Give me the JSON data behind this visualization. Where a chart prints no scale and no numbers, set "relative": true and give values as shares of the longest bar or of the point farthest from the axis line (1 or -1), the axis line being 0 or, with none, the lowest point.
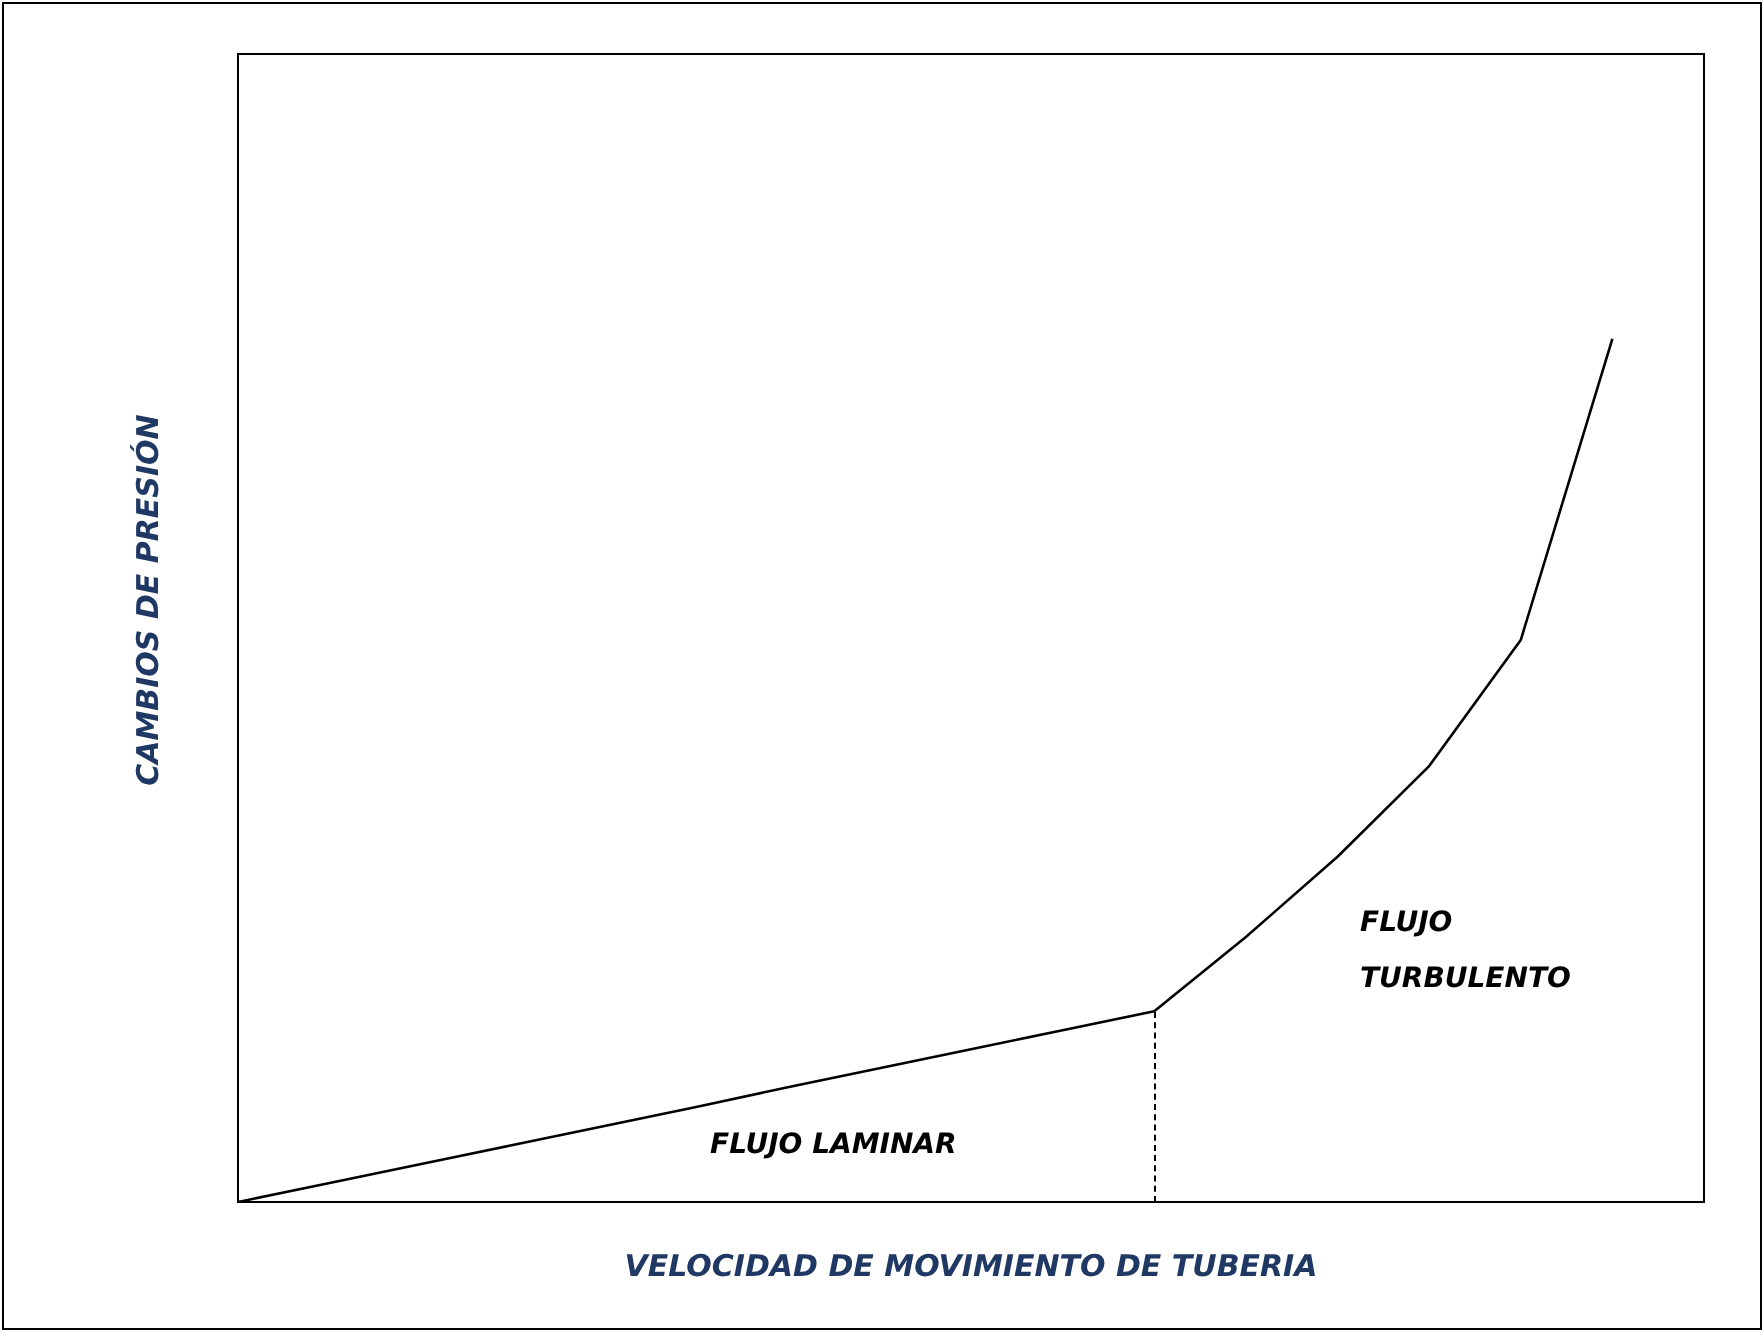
{
  "chart_data": {
    "type": "line",
    "relative": true,
    "xlabel": "VELOCIDAD DE MOVIMIENTO DE TUBERIA",
    "ylabel": "CAMBIOS DE PRESIÓN",
    "categories": [
      null,
      null,
      null,
      null,
      null,
      null,
      null,
      null,
      null,
      null,
      null,
      null,
      null,
      null,
      null,
      null,
      null
    ],
    "series": [
      {
        "color": "#000000",
        "values": [
          0,
          0.022,
          0.044,
          0.066,
          0.088,
          0.11,
          0.133,
          0.155,
          0.177,
          0.199,
          0.221,
          0.307,
          0.4,
          0.505,
          0.651,
          1,
          null
        ]
      }
    ],
    "annotations": [
      "FLUJO LAMINAR",
      "FLUJO\nTURBULENTO"
    ],
    "marker": "none",
    "line_style": "solid",
    "legend": false,
    "grid": false
  }
}
